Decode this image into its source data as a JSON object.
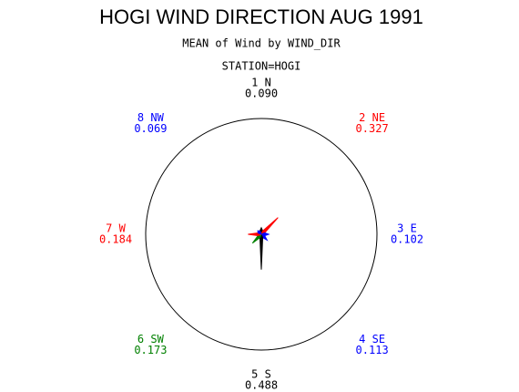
{
  "chart_data": {
    "type": "star",
    "title": "HOGI WIND DIRECTION AUG 1991",
    "subtitle": "MEAN of Wind by WIND_DIR",
    "group_label": "STATION=HOGI",
    "categories": [
      "1 N",
      "2 NE",
      "3 E",
      "4 SE",
      "5 S",
      "6 SW",
      "7 W",
      "8 NW"
    ],
    "values": [
      0.09,
      0.327,
      0.102,
      0.113,
      0.488,
      0.173,
      0.184,
      0.069
    ],
    "value_labels": [
      "0.090",
      "0.327",
      "0.102",
      "0.113",
      "0.488",
      "0.173",
      "0.184",
      "0.069"
    ],
    "colors": [
      "#000000",
      "#ff0000",
      "#0000ff",
      "#0000ff",
      "#000000",
      "#008000",
      "#ff0000",
      "#0000ff"
    ],
    "rlim": [
      0,
      1.6
    ]
  }
}
